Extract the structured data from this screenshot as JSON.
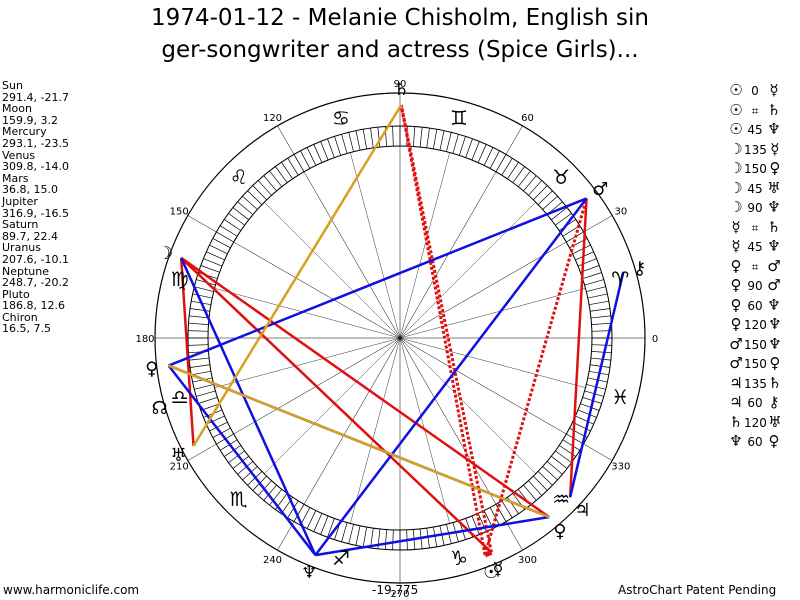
{
  "title": {
    "line1": "1974-01-12 - Melanie Chisholm, English sin",
    "line2": "ger-songwriter and actress (Spice Girls)..."
  },
  "planets": [
    {
      "name": "Sun",
      "value": "291.4, -21.7"
    },
    {
      "name": "Moon",
      "value": "159.9, 3.2"
    },
    {
      "name": "Mercury",
      "value": "293.1, -23.5"
    },
    {
      "name": "Venus",
      "value": "309.8, -14.0"
    },
    {
      "name": "Mars",
      "value": "36.8, 15.0"
    },
    {
      "name": "Jupiter",
      "value": "316.9, -16.5"
    },
    {
      "name": "Saturn",
      "value": "89.7, 22.4"
    },
    {
      "name": "Uranus",
      "value": "207.6, -10.1"
    },
    {
      "name": "Neptune",
      "value": "248.7, -20.2"
    },
    {
      "name": "Pluto",
      "value": "186.8, 12.6"
    },
    {
      "name": "Chiron",
      "value": "16.5, 7.5"
    }
  ],
  "aspects": [
    {
      "p1": "☉",
      "asp": "0",
      "p2": "☿"
    },
    {
      "p1": "☉",
      "asp": "⌗",
      "p2": "♄"
    },
    {
      "p1": "☉",
      "asp": "45",
      "p2": "♆"
    },
    {
      "p1": "☽",
      "asp": "135",
      "p2": "☿"
    },
    {
      "p1": "☽",
      "asp": "150",
      "p2": "♀"
    },
    {
      "p1": "☽",
      "asp": "45",
      "p2": "♅"
    },
    {
      "p1": "☽",
      "asp": "90",
      "p2": "♆"
    },
    {
      "p1": "☿",
      "asp": "⌗",
      "p2": "♄"
    },
    {
      "p1": "☿",
      "asp": "45",
      "p2": "♆"
    },
    {
      "p1": "♀",
      "asp": "⌗",
      "p2": "♂"
    },
    {
      "p1": "♀",
      "asp": "90",
      "p2": "♂"
    },
    {
      "p1": "♀",
      "asp": "60",
      "p2": "♆"
    },
    {
      "p1": "♀",
      "asp": "120",
      "p2": "♆"
    },
    {
      "p1": "♂",
      "asp": "150",
      "p2": "♆"
    },
    {
      "p1": "♂",
      "asp": "150",
      "p2": "♀"
    },
    {
      "p1": "♃",
      "asp": "135",
      "p2": "♄"
    },
    {
      "p1": "♃",
      "asp": "60",
      "p2": "⚷"
    },
    {
      "p1": "♄",
      "asp": "120",
      "p2": "♅"
    },
    {
      "p1": "♆",
      "asp": "60",
      "p2": "♀"
    }
  ],
  "wheel": {
    "degree_labels": [
      "0",
      "30",
      "60",
      "90",
      "120",
      "150",
      "180",
      "210",
      "240",
      "270",
      "300",
      "330"
    ],
    "zodiac": [
      {
        "glyph": "♓",
        "lon": 345
      },
      {
        "glyph": "♈",
        "lon": 15
      },
      {
        "glyph": "♉",
        "lon": 45
      },
      {
        "glyph": "♊",
        "lon": 75
      },
      {
        "glyph": "♋",
        "lon": 105
      },
      {
        "glyph": "♌",
        "lon": 135
      },
      {
        "glyph": "♍",
        "lon": 165
      },
      {
        "glyph": "♎",
        "lon": 195
      },
      {
        "glyph": "♏",
        "lon": 225
      },
      {
        "glyph": "♐",
        "lon": 255
      },
      {
        "glyph": "♑",
        "lon": 285
      },
      {
        "glyph": "♒",
        "lon": 315
      }
    ],
    "planet_glyphs": [
      {
        "glyph": "☉",
        "lon": 291.4
      },
      {
        "glyph": "☽",
        "lon": 159.9
      },
      {
        "glyph": "☿",
        "lon": 293.1
      },
      {
        "glyph": "♀",
        "lon": 309.8
      },
      {
        "glyph": "♂",
        "lon": 36.8
      },
      {
        "glyph": "♃",
        "lon": 316.9
      },
      {
        "glyph": "♄",
        "lon": 89.7
      },
      {
        "glyph": "♅",
        "lon": 207.6
      },
      {
        "glyph": "♆",
        "lon": 248.7
      },
      {
        "glyph": "♀",
        "lon": 186.8
      },
      {
        "glyph": "⚷",
        "lon": 16.5
      },
      {
        "glyph": "☊",
        "lon": 196
      }
    ],
    "aspect_lines": [
      {
        "a": 159.9,
        "b": 293.1,
        "color": "#e01010",
        "style": "solid"
      },
      {
        "a": 159.9,
        "b": 309.8,
        "color": "#e01010",
        "style": "solid"
      },
      {
        "a": 159.9,
        "b": 207.6,
        "color": "#e01010",
        "style": "solid"
      },
      {
        "a": 36.8,
        "b": 316.9,
        "color": "#e01010",
        "style": "solid"
      },
      {
        "a": 291.4,
        "b": 293.1,
        "color": "#e01010",
        "style": "heavy"
      },
      {
        "a": 291.4,
        "b": 89.7,
        "color": "#e01010",
        "style": "dotted"
      },
      {
        "a": 293.1,
        "b": 89.7,
        "color": "#e01010",
        "style": "dotted"
      },
      {
        "a": 291.4,
        "b": 36.8,
        "color": "#e01010",
        "style": "dotted"
      },
      {
        "a": 159.9,
        "b": 248.7,
        "color": "#1010e0",
        "style": "solid"
      },
      {
        "a": 186.8,
        "b": 36.8,
        "color": "#1010e0",
        "style": "solid"
      },
      {
        "a": 186.8,
        "b": 248.7,
        "color": "#1010e0",
        "style": "solid"
      },
      {
        "a": 248.7,
        "b": 36.8,
        "color": "#1010e0",
        "style": "solid"
      },
      {
        "a": 186.8,
        "b": 309.8,
        "color": "#1010e0",
        "style": "solid"
      },
      {
        "a": 248.7,
        "b": 309.8,
        "color": "#1010e0",
        "style": "solid"
      },
      {
        "a": 316.9,
        "b": 16.5,
        "color": "#1010e0",
        "style": "solid"
      },
      {
        "a": 89.7,
        "b": 207.6,
        "color": "#d8a020",
        "style": "solid"
      },
      {
        "a": 186.8,
        "b": 309.8,
        "color": "#d8a020",
        "style": "solid"
      }
    ]
  },
  "footer": {
    "left": "www.harmoniclife.com",
    "center": "-19,775",
    "right": "AstroChart Patent Pending"
  }
}
